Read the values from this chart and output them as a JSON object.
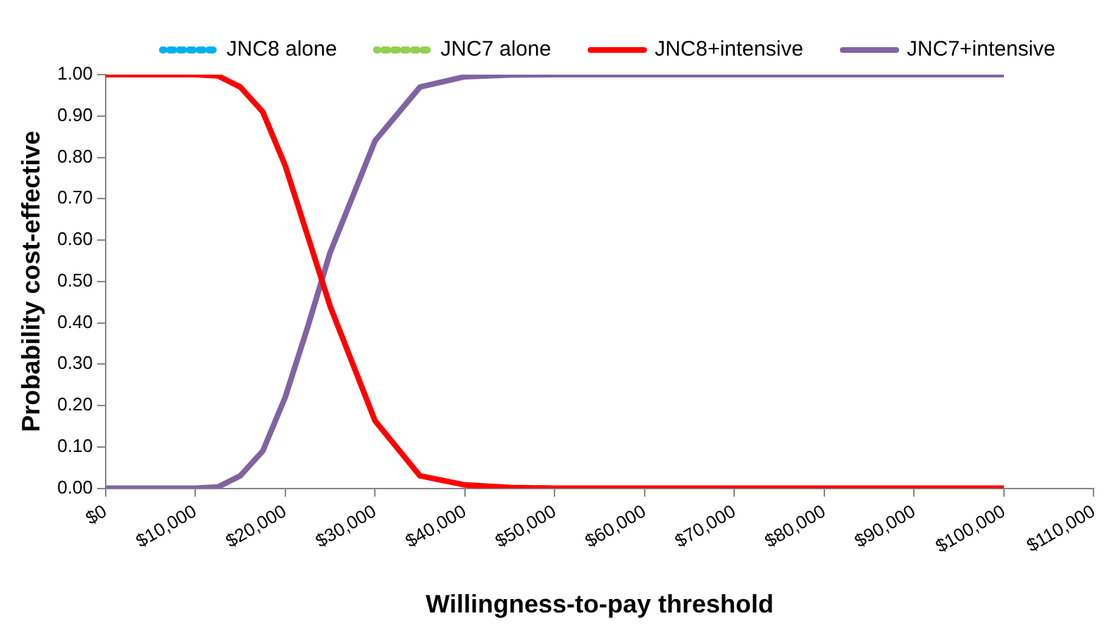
{
  "chart_data": {
    "type": "line",
    "xlabel": "Willingness-to-pay threshold",
    "ylabel": "Probability cost-effective",
    "x": [
      0,
      5000,
      10000,
      12500,
      15000,
      17500,
      20000,
      22500,
      25000,
      30000,
      35000,
      40000,
      45000,
      50000,
      60000,
      70000,
      80000,
      90000,
      100000
    ],
    "series": [
      {
        "name": "JNC8 alone",
        "color": "#00b0f0",
        "line_style": "dotted",
        "values": [
          null,
          null,
          null,
          null,
          null,
          null,
          null,
          null,
          null,
          null,
          null,
          null,
          null,
          null,
          null,
          null,
          null,
          null,
          null
        ]
      },
      {
        "name": "JNC7 alone",
        "color": "#92d050",
        "line_style": "dotted",
        "values": [
          null,
          null,
          null,
          null,
          null,
          null,
          null,
          null,
          null,
          null,
          null,
          null,
          null,
          null,
          null,
          null,
          null,
          null,
          null
        ]
      },
      {
        "name": "JNC8+intensive",
        "color": "#ff0000",
        "line_style": "solid",
        "values": [
          1,
          1,
          1,
          0.997,
          0.97,
          0.91,
          0.78,
          0.61,
          0.44,
          0.163,
          0.03,
          0.008,
          0.002,
          0,
          0,
          0,
          0,
          0,
          0
        ]
      },
      {
        "name": "JNC7+intensive",
        "color": "#8064a2",
        "line_style": "solid",
        "values": [
          0,
          0,
          0,
          0.003,
          0.03,
          0.09,
          0.22,
          0.39,
          0.57,
          0.84,
          0.97,
          0.995,
          0.999,
          1,
          1,
          1,
          1,
          1,
          1
        ]
      }
    ],
    "xlim": [
      0,
      110000
    ],
    "xticks": [
      {
        "value": 0,
        "label": "$0"
      },
      {
        "value": 10000,
        "label": "$10,000"
      },
      {
        "value": 20000,
        "label": "$20,000"
      },
      {
        "value": 30000,
        "label": "$30,000"
      },
      {
        "value": 40000,
        "label": "$40,000"
      },
      {
        "value": 50000,
        "label": "$50,000"
      },
      {
        "value": 60000,
        "label": "$60,000"
      },
      {
        "value": 70000,
        "label": "$70,000"
      },
      {
        "value": 80000,
        "label": "$80,000"
      },
      {
        "value": 90000,
        "label": "$90,000"
      },
      {
        "value": 100000,
        "label": "$100,000"
      },
      {
        "value": 110000,
        "label": "$110,000"
      }
    ],
    "ylim": [
      0,
      1
    ],
    "yticks": [
      {
        "value": 0,
        "label": "0.00"
      },
      {
        "value": 0.1,
        "label": "0.10"
      },
      {
        "value": 0.2,
        "label": "0.20"
      },
      {
        "value": 0.3,
        "label": "0.30"
      },
      {
        "value": 0.4,
        "label": "0.40"
      },
      {
        "value": 0.5,
        "label": "0.50"
      },
      {
        "value": 0.6,
        "label": "0.60"
      },
      {
        "value": 0.7,
        "label": "0.70"
      },
      {
        "value": 0.8,
        "label": "0.80"
      },
      {
        "value": 0.9,
        "label": "0.90"
      },
      {
        "value": 1,
        "label": "1.00"
      }
    ],
    "grid": false,
    "legend": "top",
    "marker": "none"
  }
}
